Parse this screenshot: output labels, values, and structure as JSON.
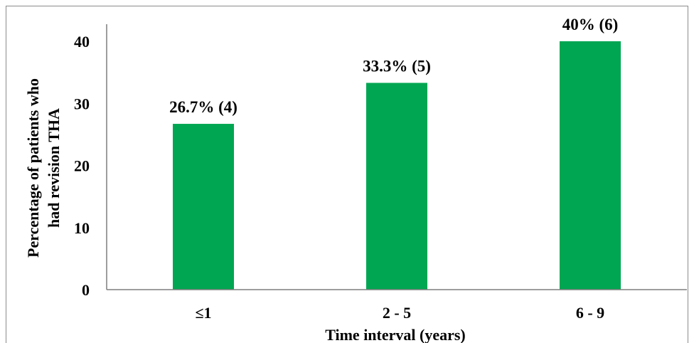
{
  "chart_data": {
    "type": "bar",
    "categories": [
      "≤1",
      "2 - 5",
      "6 - 9"
    ],
    "values": [
      26.7,
      33.3,
      40
    ],
    "data_labels": [
      "26.7% (4)",
      "33.3% (5)",
      "40% (6)"
    ],
    "xlabel": "Time interval (years)",
    "ylabel_lines": [
      "Percentage of patients who",
      "had revision THA"
    ],
    "yticks": [
      "0",
      "10",
      "20",
      "30",
      "40"
    ],
    "ylim": [
      0,
      40
    ],
    "grid": false,
    "legend": "none",
    "bar_color": "#00A651"
  }
}
